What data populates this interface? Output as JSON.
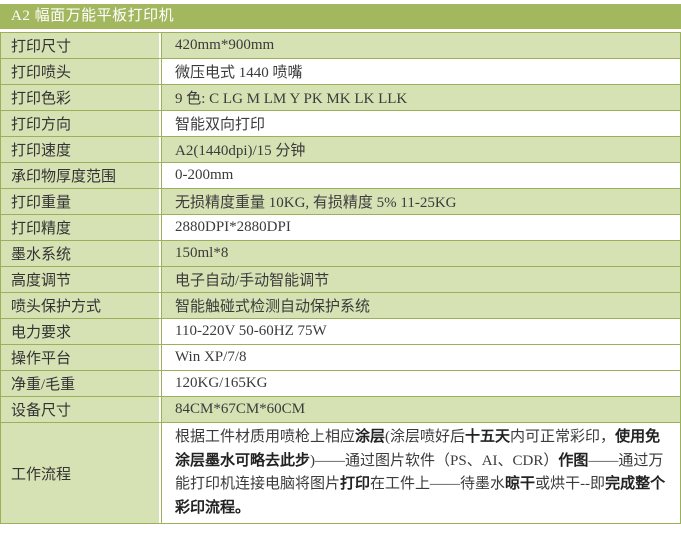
{
  "header": {
    "title": "A2 幅面万能平板打印机"
  },
  "colors": {
    "header_bg": "#a3b75f",
    "header_text": "#ffffff",
    "shaded_bg": "#d6e2b4",
    "border": "#9ab159",
    "text": "#3b3b3b"
  },
  "table": {
    "rows": [
      {
        "label": "打印尺寸",
        "value": "420mm*900mm",
        "shaded": true
      },
      {
        "label": "打印喷头",
        "value": "微压电式 1440 喷嘴",
        "shaded": false
      },
      {
        "label": "打印色彩",
        "value": "9 色: C LG M LM Y PK MK LK LLK",
        "shaded": true
      },
      {
        "label": "打印方向",
        "value": "智能双向打印",
        "shaded": false
      },
      {
        "label": "打印速度",
        "value": "A2(1440dpi)/15 分钟",
        "shaded": true
      },
      {
        "label": "承印物厚度范围",
        "value": "0-200mm",
        "shaded": false
      },
      {
        "label": "打印重量",
        "value": "无损精度重量 10KG, 有损精度 5% 11-25KG",
        "shaded": true
      },
      {
        "label": "打印精度",
        "value": "2880DPI*2880DPI",
        "shaded": false
      },
      {
        "label": "墨水系统",
        "value": "150ml*8",
        "shaded": true
      },
      {
        "label": "高度调节",
        "value": "电子自动/手动智能调节",
        "shaded": true
      },
      {
        "label": "喷头保护方式",
        "value": "智能触碰式检测自动保护系统",
        "shaded": true
      },
      {
        "label": "电力要求",
        "value": "110-220V 50-60HZ 75W",
        "shaded": false
      },
      {
        "label": "操作平台",
        "value": "Win XP/7/8",
        "shaded": false
      },
      {
        "label": "净重/毛重",
        "value": "120KG/165KG",
        "shaded": false
      },
      {
        "label": "设备尺寸",
        "value": "84CM*67CM*60CM",
        "shaded": true
      }
    ],
    "workflow": {
      "label": "工作流程",
      "shaded": false,
      "segments": [
        {
          "text": "根据工件材质用喷枪上相应",
          "bold": false
        },
        {
          "text": "涂层",
          "bold": true
        },
        {
          "text": "(涂层喷好后",
          "bold": false
        },
        {
          "text": "十五天",
          "bold": true
        },
        {
          "text": "内可正常彩印，",
          "bold": false
        },
        {
          "text": "使用免涂层墨水可略去此步",
          "bold": true
        },
        {
          "text": ")——通过图片软件（PS、AI、CDR）",
          "bold": false
        },
        {
          "text": "作图",
          "bold": true
        },
        {
          "text": "——通过万能打印机连接电脑将图片",
          "bold": false
        },
        {
          "text": "打印",
          "bold": true
        },
        {
          "text": "在工件上——待墨水",
          "bold": false
        },
        {
          "text": "晾干",
          "bold": true
        },
        {
          "text": "或烘干--即",
          "bold": false
        },
        {
          "text": "完成整个彩印流程。",
          "bold": true
        }
      ]
    }
  }
}
